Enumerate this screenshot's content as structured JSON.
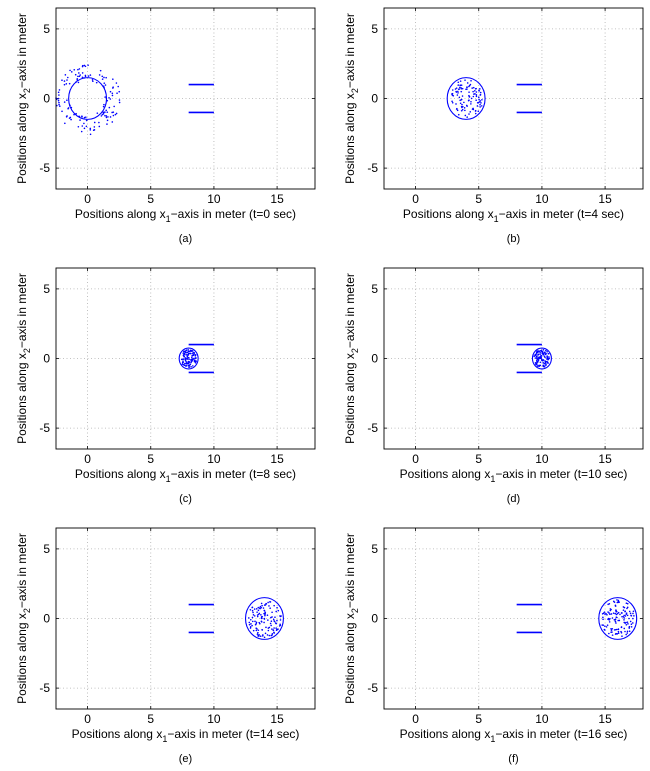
{
  "chart_data": [
    {
      "type": "scatter",
      "label": "(a)",
      "xlabel": "Positions along x_1−axis in meter (t=0 sec)",
      "ylabel": "Positions along x_2−axis in meter",
      "xlim": [
        -2.5,
        18
      ],
      "ylim": [
        -6.5,
        6.5
      ],
      "xticks": [
        0,
        5,
        10,
        15
      ],
      "yticks": [
        -5,
        0,
        5
      ],
      "grid": true,
      "walls": [
        {
          "x": [
            8,
            10
          ],
          "y": 1
        },
        {
          "x": [
            8,
            10
          ],
          "y": -1
        }
      ],
      "circle": {
        "center": [
          0,
          0
        ],
        "radius": 1.5
      },
      "swarm": {
        "center": [
          0,
          0
        ],
        "rmin": 1.3,
        "rmax": 2.6,
        "count": 140
      }
    },
    {
      "type": "scatter",
      "label": "(b)",
      "xlabel": "Positions along x_1−axis in meter (t=4 sec)",
      "ylabel": "Positions along x_2−axis in meter",
      "xlim": [
        -2.5,
        18
      ],
      "ylim": [
        -6.5,
        6.5
      ],
      "xticks": [
        0,
        5,
        10,
        15
      ],
      "yticks": [
        -5,
        0,
        5
      ],
      "grid": true,
      "walls": [
        {
          "x": [
            8,
            10
          ],
          "y": 1
        },
        {
          "x": [
            8,
            10
          ],
          "y": -1
        }
      ],
      "circle": {
        "center": [
          4,
          0
        ],
        "radius": 1.5
      },
      "swarm": {
        "center": [
          4,
          0
        ],
        "rmin": 0,
        "rmax": 1.35,
        "count": 110
      }
    },
    {
      "type": "scatter",
      "label": "(c)",
      "xlabel": "Positions along x_1−axis in meter (t=8 sec)",
      "ylabel": "Positions along x_2−axis in meter",
      "xlim": [
        -2.5,
        18
      ],
      "ylim": [
        -6.5,
        6.5
      ],
      "xticks": [
        0,
        5,
        10,
        15
      ],
      "yticks": [
        -5,
        0,
        5
      ],
      "grid": true,
      "walls": [
        {
          "x": [
            8,
            10
          ],
          "y": 1
        },
        {
          "x": [
            8,
            10
          ],
          "y": -1
        }
      ],
      "circle": {
        "center": [
          8,
          0
        ],
        "radius": 0.75
      },
      "swarm": {
        "center": [
          8,
          0
        ],
        "rmin": 0,
        "rmax": 0.65,
        "count": 110
      }
    },
    {
      "type": "scatter",
      "label": "(d)",
      "xlabel": "Positions along x_1−axis in meter (t=10 sec)",
      "ylabel": "Positions along x_2−axis in meter",
      "xlim": [
        -2.5,
        18
      ],
      "ylim": [
        -6.5,
        6.5
      ],
      "xticks": [
        0,
        5,
        10,
        15
      ],
      "yticks": [
        -5,
        0,
        5
      ],
      "grid": true,
      "walls": [
        {
          "x": [
            8,
            10
          ],
          "y": 1
        },
        {
          "x": [
            8,
            10
          ],
          "y": -1
        }
      ],
      "circle": {
        "center": [
          10,
          0
        ],
        "radius": 0.75
      },
      "swarm": {
        "center": [
          10,
          0
        ],
        "rmin": 0,
        "rmax": 0.65,
        "count": 110
      }
    },
    {
      "type": "scatter",
      "label": "(e)",
      "xlabel": "Positions along x_1−axis in meter (t=14 sec)",
      "ylabel": "Positions along x_2−axis in meter",
      "xlim": [
        -2.5,
        18
      ],
      "ylim": [
        -6.5,
        6.5
      ],
      "xticks": [
        0,
        5,
        10,
        15
      ],
      "yticks": [
        -5,
        0,
        5
      ],
      "grid": true,
      "walls": [
        {
          "x": [
            8,
            10
          ],
          "y": 1
        },
        {
          "x": [
            8,
            10
          ],
          "y": -1
        }
      ],
      "circle": {
        "center": [
          14,
          0
        ],
        "radius": 1.5
      },
      "swarm": {
        "center": [
          14,
          0
        ],
        "rmin": 0,
        "rmax": 1.35,
        "count": 130
      }
    },
    {
      "type": "scatter",
      "label": "(f)",
      "xlabel": "Positions along x_1−axis in meter (t=16 sec)",
      "ylabel": "Positions along x_2−axis in meter",
      "xlim": [
        -2.5,
        18
      ],
      "ylim": [
        -6.5,
        6.5
      ],
      "xticks": [
        0,
        5,
        10,
        15
      ],
      "yticks": [
        -5,
        0,
        5
      ],
      "grid": true,
      "walls": [
        {
          "x": [
            8,
            10
          ],
          "y": 1
        },
        {
          "x": [
            8,
            10
          ],
          "y": -1
        }
      ],
      "circle": {
        "center": [
          16,
          0
        ],
        "radius": 1.5
      },
      "swarm": {
        "center": [
          16,
          0
        ],
        "rmin": 0,
        "rmax": 1.35,
        "count": 130
      }
    }
  ],
  "colors": {
    "mark": "#0000ff",
    "grid": "#b0b0b0",
    "axis": "#000000"
  }
}
